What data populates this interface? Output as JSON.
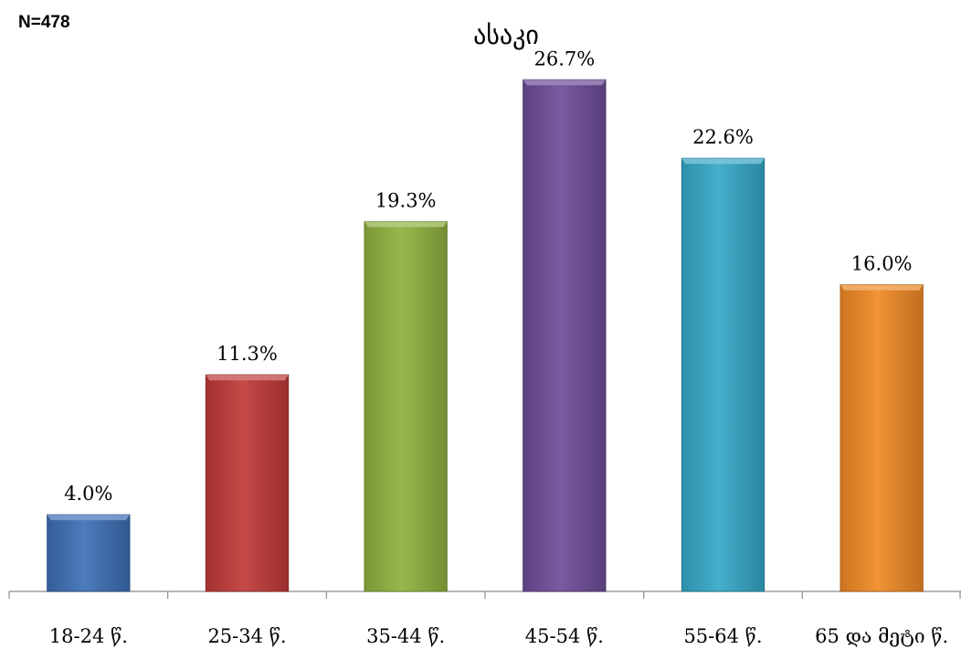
{
  "sample_size": "N=478",
  "chart_data": {
    "type": "bar",
    "title": "ასაკი",
    "categories": [
      "18-24 წ.",
      "25-34 წ.",
      "35-44 წ.",
      "45-54 წ.",
      "55-64 წ.",
      "65 და მეტი წ."
    ],
    "values": [
      4.0,
      11.3,
      19.3,
      26.7,
      22.6,
      16.0
    ],
    "value_labels": [
      "4.0%",
      "11.3%",
      "19.3%",
      "26.7%",
      "22.6%",
      "16.0%"
    ],
    "unit": "%",
    "colors": [
      "#3d6fb5",
      "#c03a38",
      "#8fb23e",
      "#6e4d98",
      "#35a8c8",
      "#f08a25"
    ],
    "ylim": [
      0,
      28
    ],
    "grid": false,
    "legend": "none"
  }
}
